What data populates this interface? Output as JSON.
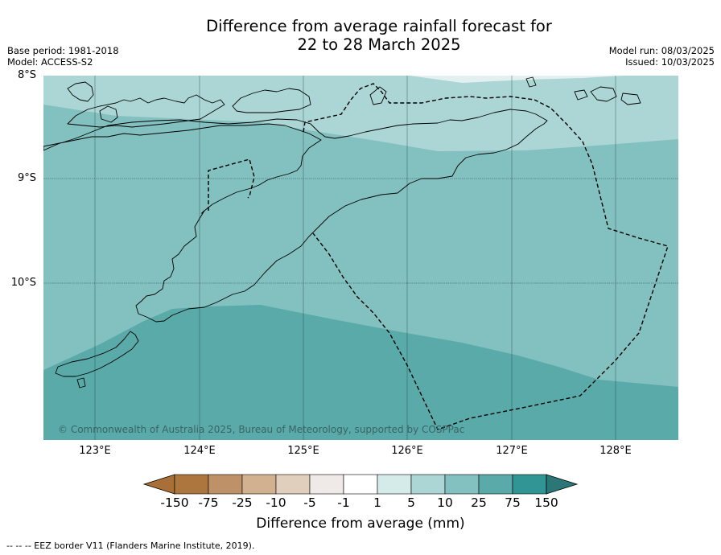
{
  "header": {
    "title_line1": "Difference from average rainfall forecast for",
    "title_line2": "22 to 28 March 2025",
    "base_period": "Base period: 1981-2018",
    "model": "Model: ACCESS-S2",
    "model_run": "Model run: 08/03/2025",
    "issued": "Issued: 10/03/2025"
  },
  "map": {
    "y_ticks": [
      "8°S",
      "9°S",
      "10°S"
    ],
    "x_ticks": [
      "123°E",
      "124°E",
      "125°E",
      "126°E",
      "127°E",
      "128°E"
    ],
    "copyright": "© Commonwealth of Australia 2025, Bureau of Meteorology, supported by COSPPac",
    "colors": {
      "band_5_10": "#acd5d5",
      "band_10_25": "#83c0c0",
      "band_25_75": "#5aaaaa",
      "coastline": "#000000",
      "gridline": "#1f3b3b",
      "eez_border": "#000000"
    }
  },
  "colorbar": {
    "labels": [
      "-150",
      "-75",
      "-25",
      "-10",
      "-5",
      "-1",
      "1",
      "5",
      "10",
      "25",
      "75",
      "150"
    ],
    "colors": [
      "#a86f37",
      "#ac763e",
      "#bf9168",
      "#d2b190",
      "#e1cfbd",
      "#efeae7",
      "#ffffff",
      "#d5ebea",
      "#acd5d5",
      "#83c0c0",
      "#5aaaaa",
      "#319595",
      "#2b7777"
    ],
    "title": "Difference from average (mm)"
  },
  "footnote": "-- -- -- EEZ border V11 (Flanders Marine Institute, 2019)."
}
